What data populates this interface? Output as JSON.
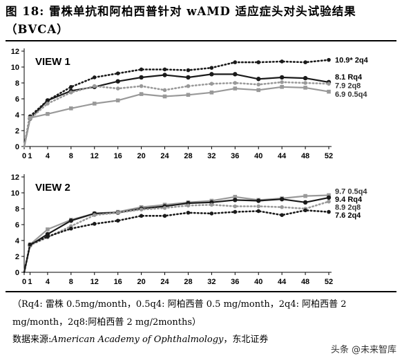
{
  "title_line1": "图  18:  雷株单抗和阿柏西普针对  wAMD  适应症头对头试验结果",
  "title_line2": "（BVCA）",
  "note_line": "（Rq4:  雷株  0.5mg/month，0.5q4:  阿柏西普  0.5  mg/month，2q4:  阿柏西普  2 mg/month，2q8:阿柏西普 2 mg/2months）",
  "source_label": "数据来源:",
  "source_name": "American Academy of Ophthalmology",
  "source_suffix": "，东北证券",
  "watermark": "头条 @未来智库",
  "chart_data": [
    {
      "type": "line",
      "title": "VIEW 1",
      "x": [
        0,
        1,
        4,
        8,
        12,
        16,
        20,
        24,
        28,
        32,
        36,
        40,
        44,
        48,
        52
      ],
      "ylim": [
        0,
        12
      ],
      "yticks": [
        0,
        2,
        4,
        6,
        8,
        10,
        12
      ],
      "grid": false,
      "series": [
        {
          "name": "2q4",
          "label": "10.9* 2q4",
          "style": "dotted",
          "color": "#1a1a1a",
          "values": [
            0,
            3.8,
            5.8,
            7.5,
            8.7,
            9.2,
            9.7,
            9.7,
            9.6,
            9.9,
            10.6,
            10.6,
            10.7,
            10.6,
            10.9
          ]
        },
        {
          "name": "Rq4",
          "label": "8.1  Rq4",
          "style": "solid",
          "color": "#1a1a1a",
          "values": [
            0,
            3.5,
            5.8,
            7.0,
            7.5,
            8.2,
            8.7,
            9.0,
            8.7,
            9.1,
            9.1,
            8.5,
            8.7,
            8.6,
            8.1
          ]
        },
        {
          "name": "2q8",
          "label": "7.9  2q8",
          "style": "dotted",
          "color": "#999999",
          "values": [
            0,
            3.5,
            5.4,
            6.8,
            7.6,
            7.3,
            7.6,
            7.1,
            7.6,
            7.9,
            8.0,
            7.8,
            8.1,
            8.0,
            7.9
          ]
        },
        {
          "name": "0.5q4",
          "label": "6.9  0.5q4",
          "style": "solid",
          "color": "#999999",
          "values": [
            0,
            3.6,
            4.1,
            4.8,
            5.4,
            5.8,
            6.6,
            6.3,
            6.5,
            6.8,
            7.3,
            7.1,
            7.5,
            7.4,
            6.9
          ]
        }
      ]
    },
    {
      "type": "line",
      "title": "VIEW 2",
      "x": [
        0,
        1,
        4,
        8,
        12,
        16,
        20,
        24,
        28,
        32,
        36,
        40,
        44,
        48,
        52
      ],
      "ylim": [
        0,
        12
      ],
      "yticks": [
        0,
        2,
        4,
        6,
        8,
        10,
        12
      ],
      "grid": false,
      "series": [
        {
          "name": "0.5q4",
          "label": "9.7  0.5q4",
          "style": "solid",
          "color": "#999999",
          "values": [
            0,
            3.5,
            5.4,
            6.6,
            7.4,
            7.6,
            8.2,
            8.5,
            8.8,
            9.0,
            9.5,
            9.1,
            9.3,
            9.6,
            9.7
          ]
        },
        {
          "name": "Rq4",
          "label": "9.4  Rq4",
          "style": "solid",
          "color": "#1a1a1a",
          "values": [
            0,
            3.4,
            4.8,
            6.5,
            7.4,
            7.5,
            8.0,
            8.3,
            8.7,
            8.8,
            9.1,
            9.0,
            9.2,
            8.8,
            9.4
          ]
        },
        {
          "name": "2q8",
          "label": "8.9  2q8",
          "style": "dotted",
          "color": "#999999",
          "values": [
            0,
            3.4,
            4.4,
            5.8,
            7.2,
            7.5,
            7.9,
            8.1,
            8.4,
            8.5,
            8.3,
            8.3,
            8.2,
            8.0,
            8.9
          ]
        },
        {
          "name": "2q4",
          "label": "7.6  2q4",
          "style": "dotted",
          "color": "#1a1a1a",
          "values": [
            0,
            3.5,
            4.5,
            5.5,
            6.1,
            6.5,
            7.1,
            7.1,
            7.5,
            7.4,
            7.6,
            7.7,
            7.2,
            7.8,
            7.6
          ]
        }
      ]
    }
  ]
}
